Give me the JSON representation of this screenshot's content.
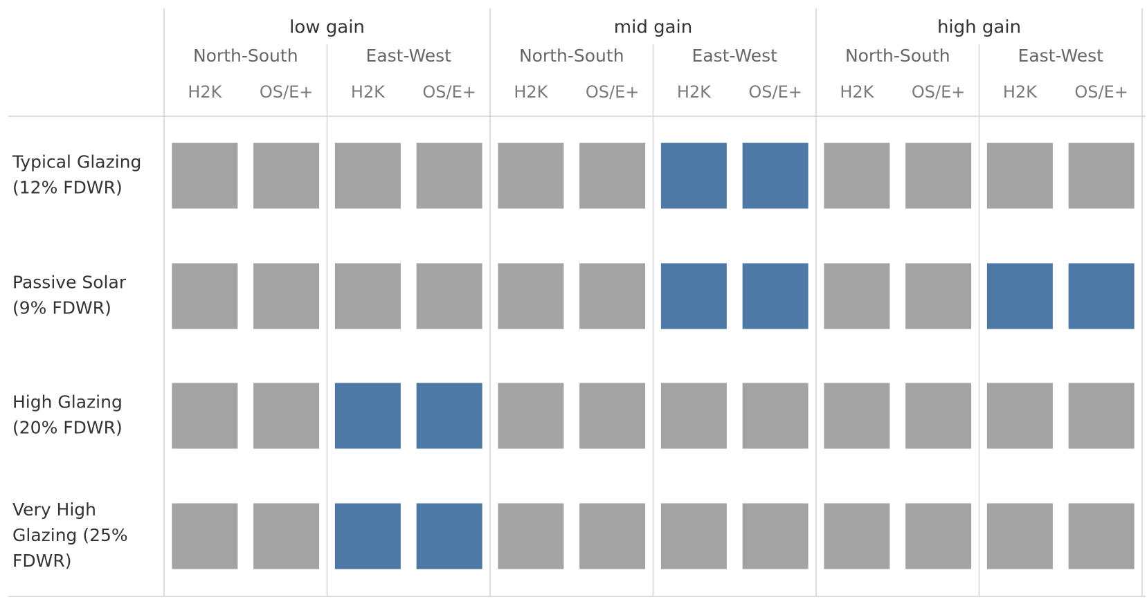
{
  "chart_data": {
    "type": "heatmap",
    "title": "",
    "xlabel": "",
    "ylabel": "",
    "column_groups": [
      "low gain",
      "mid gain",
      "high gain"
    ],
    "column_subgroups": [
      "North-South",
      "East-West"
    ],
    "columns": [
      "H2K",
      "OS/E+"
    ],
    "rows": [
      {
        "label_lines": [
          "Typical Glazing",
          "(12% FDWR)"
        ],
        "values": [
          0,
          0,
          0,
          0,
          0,
          0,
          1,
          1,
          0,
          0,
          0,
          0
        ]
      },
      {
        "label_lines": [
          "Passive Solar",
          "(9% FDWR)"
        ],
        "values": [
          0,
          0,
          0,
          0,
          0,
          0,
          1,
          1,
          0,
          0,
          1,
          1
        ]
      },
      {
        "label_lines": [
          "High Glazing",
          "(20% FDWR)"
        ],
        "values": [
          0,
          0,
          1,
          1,
          0,
          0,
          0,
          0,
          0,
          0,
          0,
          0
        ]
      },
      {
        "label_lines": [
          "Very High",
          "Glazing (25%",
          "FDWR)"
        ],
        "values": [
          0,
          0,
          1,
          1,
          0,
          0,
          0,
          0,
          0,
          0,
          0,
          0
        ]
      }
    ],
    "value_colors": {
      "0": "#a3a3a3",
      "1": "#4e79a7"
    },
    "grid": true,
    "legend": "none"
  }
}
